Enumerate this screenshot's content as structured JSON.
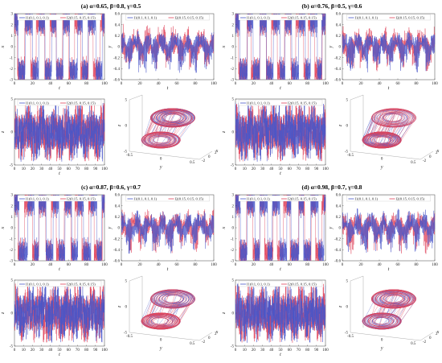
{
  "figure": {
    "captions": [
      "(a) α=0.65, β=0.8, γ=0.5",
      "(b) α=0.76, β=0.5, γ=0.6",
      "(c) α=0.87, β=0.6, γ=0.7",
      "(d) α=0.98, β=0.7, γ=0.8"
    ]
  },
  "colors": {
    "series1": "#4a57c8",
    "series2": "#e0435a"
  },
  "chart_data": [
    {
      "type": "line",
      "panel": "a-top-left",
      "xlabel": "t",
      "ylabel": "x",
      "xlim": [
        0,
        100
      ],
      "ylim": [
        -3,
        3
      ],
      "xticks": [
        0,
        20,
        40,
        60,
        80,
        100
      ],
      "yticks": [
        -3,
        -2,
        -1,
        0,
        1,
        2,
        3
      ],
      "legend": "top",
      "signal": "switching",
      "series": [
        {
          "name": "I1(0.1, 0.1, 0.1)"
        },
        {
          "name": "I2(0.15, 0.15, 0.15)"
        }
      ]
    },
    {
      "type": "line",
      "panel": "a-top-right",
      "xlabel": "t",
      "ylabel": "y",
      "xlim": [
        0,
        100
      ],
      "ylim": [
        -0.6,
        0.6
      ],
      "xticks": [
        0,
        20,
        40,
        60,
        80,
        100
      ],
      "yticks": [
        -0.6,
        -0.4,
        -0.2,
        0,
        0.2,
        0.4,
        0.6
      ],
      "legend": "top",
      "signal": "dense",
      "series": [
        {
          "name": "I1(0.1, 0.1, 0.1)"
        },
        {
          "name": "I2(0.15, 0.15, 0.15)"
        }
      ]
    },
    {
      "type": "line",
      "panel": "a-bottom-left",
      "xlabel": "t",
      "ylabel": "z",
      "xlim": [
        0,
        100
      ],
      "ylim": [
        -5,
        5
      ],
      "xticks": [
        0,
        10,
        20,
        30,
        40,
        50,
        60,
        70,
        80,
        90,
        100
      ],
      "yticks": [
        -5,
        0,
        5
      ],
      "legend": "top",
      "signal": "bursty",
      "series": [
        {
          "name": "I1(0.1, 0.1, 0.1)"
        },
        {
          "name": "I2(0.15, 0.15, 0.15)"
        }
      ]
    },
    {
      "type": "line",
      "panel": "a-attractor",
      "xlabel": "y",
      "ylabel": "z",
      "xlabel2": "x",
      "yticks": [
        -5,
        0,
        5
      ],
      "xticks": [
        -0.5,
        0,
        0.5
      ],
      "x2ticks": [
        -2,
        0,
        2
      ],
      "view": "3d",
      "series": [
        {
          "name": "I1(0.1, 0.1, 0.1)"
        },
        {
          "name": "I2(0.15, 0.15, 0.15)"
        }
      ]
    },
    {
      "type": "line",
      "panel": "b-top-left",
      "xlabel": "t",
      "ylabel": "x",
      "xlim": [
        0,
        100
      ],
      "ylim": [
        -3,
        3
      ],
      "xticks": [
        0,
        20,
        40,
        60,
        80,
        100
      ],
      "yticks": [
        -3,
        -2,
        -1,
        0,
        1,
        2,
        3
      ],
      "legend": "top",
      "signal": "switching",
      "series": [
        {
          "name": "I1(0.1, 0.1, 0.1)"
        },
        {
          "name": "I2(0.15, 0.15, 0.15)"
        }
      ]
    },
    {
      "type": "line",
      "panel": "b-top-right",
      "xlabel": "t",
      "ylabel": "y",
      "xlim": [
        0,
        100
      ],
      "ylim": [
        -0.6,
        0.6
      ],
      "xticks": [
        0,
        20,
        40,
        60,
        80,
        100
      ],
      "yticks": [
        -0.6,
        -0.4,
        -0.2,
        0,
        0.2,
        0.4,
        0.6
      ],
      "legend": "top",
      "signal": "dense",
      "series": [
        {
          "name": "I1(0.1, 0.1, 0.1)"
        },
        {
          "name": "I2(0.15, 0.15, 0.15)"
        }
      ]
    },
    {
      "type": "line",
      "panel": "b-bottom-left",
      "xlabel": "t",
      "ylabel": "z",
      "xlim": [
        0,
        100
      ],
      "ylim": [
        -5,
        5
      ],
      "xticks": [
        0,
        10,
        20,
        30,
        40,
        50,
        60,
        70,
        80,
        90,
        100
      ],
      "yticks": [
        -5,
        0,
        5
      ],
      "legend": "top",
      "signal": "bursty",
      "series": [
        {
          "name": "I1(0.1, 0.1, 0.1)"
        },
        {
          "name": "I2(0.15, 0.15, 0.15)"
        }
      ]
    },
    {
      "type": "line",
      "panel": "b-attractor",
      "xlabel": "y",
      "ylabel": "z",
      "xlabel2": "x",
      "yticks": [
        -5,
        0,
        5
      ],
      "xticks": [
        -0.5,
        0,
        0.5
      ],
      "x2ticks": [
        -2,
        0,
        2
      ],
      "view": "3d",
      "series": [
        {
          "name": "I1(0.1, 0.1, 0.1)"
        },
        {
          "name": "I2(0.15, 0.15, 0.15)"
        }
      ]
    },
    {
      "type": "line",
      "panel": "c-top-left",
      "xlabel": "t",
      "ylabel": "x",
      "xlim": [
        0,
        100
      ],
      "ylim": [
        -3,
        3
      ],
      "xticks": [
        0,
        20,
        40,
        60,
        80,
        100
      ],
      "yticks": [
        -3,
        -2,
        -1,
        0,
        1,
        2,
        3
      ],
      "legend": "top",
      "signal": "switching",
      "series": [
        {
          "name": "I1(0.1, 0.1, 0.1)"
        },
        {
          "name": "I2(0.15, 0.15, 0.15)"
        }
      ]
    },
    {
      "type": "line",
      "panel": "c-top-right",
      "xlabel": "t",
      "ylabel": "y",
      "xlim": [
        0,
        100
      ],
      "ylim": [
        -0.6,
        0.6
      ],
      "xticks": [
        0,
        20,
        40,
        60,
        80,
        100
      ],
      "yticks": [
        -0.6,
        -0.4,
        -0.2,
        0,
        0.2,
        0.4,
        0.6
      ],
      "legend": "top",
      "signal": "dense",
      "series": [
        {
          "name": "I1(0.1, 0.1, 0.1)"
        },
        {
          "name": "I2(0.15, 0.15, 0.15)"
        }
      ]
    },
    {
      "type": "line",
      "panel": "c-bottom-left",
      "xlabel": "t",
      "ylabel": "z",
      "xlim": [
        0,
        100
      ],
      "ylim": [
        -5,
        5
      ],
      "xticks": [
        0,
        10,
        20,
        30,
        40,
        50,
        60,
        70,
        80,
        90,
        100
      ],
      "yticks": [
        -5,
        0,
        5
      ],
      "legend": "top",
      "signal": "bursty",
      "series": [
        {
          "name": "I1(0.1, 0.1, 0.1)"
        },
        {
          "name": "I2(0.15, 0.15, 0.15)"
        }
      ]
    },
    {
      "type": "line",
      "panel": "c-attractor",
      "xlabel": "y",
      "ylabel": "z",
      "xlabel2": "x",
      "yticks": [
        -5,
        0,
        5
      ],
      "xticks": [
        -0.5,
        0,
        0.5
      ],
      "x2ticks": [
        -2,
        0,
        2
      ],
      "view": "3d",
      "series": [
        {
          "name": "I1(0.1, 0.1, 0.1)"
        },
        {
          "name": "I2(0.15, 0.15, 0.15)"
        }
      ]
    },
    {
      "type": "line",
      "panel": "d-top-left",
      "xlabel": "t",
      "ylabel": "x",
      "xlim": [
        0,
        100
      ],
      "ylim": [
        -3,
        3
      ],
      "xticks": [
        0,
        20,
        40,
        60,
        80,
        100
      ],
      "yticks": [
        -3,
        -2,
        -1,
        0,
        1,
        2,
        3
      ],
      "legend": "top",
      "signal": "switching",
      "series": [
        {
          "name": "I1(0.1, 0.1, 0.1)"
        },
        {
          "name": "I2(0.15, 0.15, 0.15)"
        }
      ]
    },
    {
      "type": "line",
      "panel": "d-top-right",
      "xlabel": "t",
      "ylabel": "y",
      "xlim": [
        0,
        100
      ],
      "ylim": [
        -0.6,
        0.6
      ],
      "xticks": [
        0,
        20,
        40,
        60,
        80,
        100
      ],
      "yticks": [
        -0.6,
        -0.4,
        -0.2,
        0,
        0.2,
        0.4,
        0.6
      ],
      "legend": "top",
      "signal": "dense",
      "series": [
        {
          "name": "I1(0.1, 0.1, 0.1)"
        },
        {
          "name": "I2(0.15, 0.15, 0.15)"
        }
      ]
    },
    {
      "type": "line",
      "panel": "d-bottom-left",
      "xlabel": "t",
      "ylabel": "z",
      "xlim": [
        0,
        100
      ],
      "ylim": [
        -5,
        5
      ],
      "xticks": [
        0,
        10,
        20,
        30,
        40,
        50,
        60,
        70,
        80,
        90,
        100
      ],
      "yticks": [
        -5,
        0,
        5
      ],
      "legend": "top",
      "signal": "bursty",
      "series": [
        {
          "name": "I1(0.1, 0.1, 0.1)"
        },
        {
          "name": "I2(0.15, 0.15, 0.15)"
        }
      ]
    },
    {
      "type": "line",
      "panel": "d-attractor",
      "xlabel": "y",
      "ylabel": "z",
      "xlabel2": "x",
      "yticks": [
        -5,
        0,
        5
      ],
      "xticks": [
        -0.5,
        0,
        0.5
      ],
      "x2ticks": [
        -2,
        0,
        2
      ],
      "view": "3d",
      "series": [
        {
          "name": "I1(0.1, 0.1, 0.1)"
        },
        {
          "name": "I2(0.15, 0.15, 0.15)"
        }
      ]
    }
  ]
}
